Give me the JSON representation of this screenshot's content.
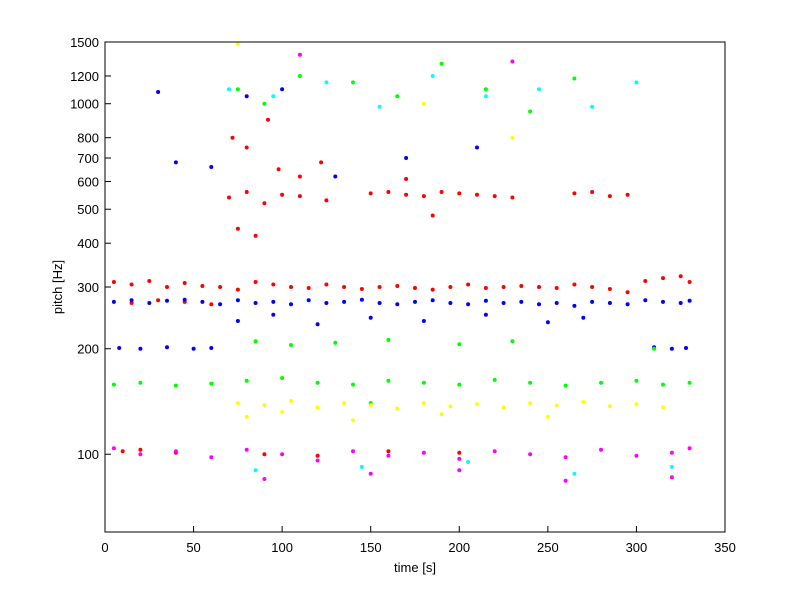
{
  "chart_data": {
    "type": "scatter",
    "title": "",
    "xlabel": "time [s]",
    "ylabel": "pitch [Hz]",
    "xlim": [
      0,
      350
    ],
    "ylim": [
      60,
      1500
    ],
    "yscale": "log",
    "grid": false,
    "legend": "none",
    "x_ticks": [
      0,
      50,
      100,
      150,
      200,
      250,
      300,
      350
    ],
    "x_tick_labels": [
      "0",
      "50",
      "100",
      "150",
      "200",
      "250",
      "300",
      "350"
    ],
    "y_ticks": [
      100,
      200,
      300,
      400,
      500,
      600,
      700,
      800,
      1000,
      1200,
      1500
    ],
    "y_tick_labels": [
      "100",
      "200",
      "300",
      "400",
      "500",
      "600",
      "700",
      "800",
      "1000",
      "1200",
      "1500"
    ],
    "series": [
      {
        "color": "#ff0000",
        "x": [
          5,
          15,
          25,
          35,
          45,
          55,
          65,
          75,
          85,
          95,
          105,
          115,
          125,
          135,
          145,
          155,
          165,
          175,
          185,
          195,
          205,
          215,
          225,
          235,
          245,
          255,
          265,
          275,
          285,
          295,
          305,
          315,
          325,
          330,
          70,
          80,
          90,
          100,
          110,
          125,
          150,
          160,
          170,
          180,
          190,
          200,
          210,
          220,
          230,
          265,
          275,
          285,
          295,
          75,
          85,
          98,
          110,
          122,
          170,
          185,
          72,
          80,
          92,
          15,
          30,
          45,
          60,
          10,
          20,
          40,
          90,
          120,
          160,
          200
        ],
        "y": [
          310,
          305,
          312,
          300,
          308,
          302,
          300,
          295,
          310,
          305,
          300,
          298,
          305,
          300,
          296,
          300,
          302,
          298,
          295,
          300,
          305,
          298,
          300,
          302,
          300,
          298,
          305,
          300,
          296,
          290,
          312,
          318,
          322,
          310,
          540,
          560,
          520,
          550,
          545,
          530,
          555,
          560,
          550,
          545,
          560,
          555,
          550,
          545,
          540,
          555,
          560,
          545,
          550,
          440,
          420,
          650,
          620,
          680,
          610,
          480,
          800,
          750,
          900,
          270,
          275,
          272,
          268,
          102,
          103,
          101,
          100,
          99,
          102,
          101
        ]
      },
      {
        "color": "#0000ff",
        "x": [
          5,
          15,
          25,
          35,
          45,
          55,
          65,
          75,
          85,
          95,
          105,
          115,
          125,
          135,
          145,
          155,
          165,
          175,
          185,
          195,
          205,
          215,
          225,
          235,
          245,
          255,
          265,
          275,
          285,
          295,
          305,
          315,
          325,
          330,
          8,
          20,
          35,
          50,
          60,
          310,
          320,
          328,
          75,
          95,
          120,
          150,
          180,
          215,
          250,
          270,
          40,
          60,
          30,
          80,
          100,
          130,
          170,
          210
        ],
        "y": [
          272,
          275,
          270,
          274,
          276,
          272,
          268,
          275,
          270,
          272,
          268,
          275,
          270,
          272,
          276,
          270,
          268,
          272,
          275,
          270,
          268,
          274,
          270,
          272,
          268,
          270,
          265,
          272,
          270,
          268,
          275,
          272,
          270,
          274,
          201,
          200,
          202,
          200,
          201,
          202,
          200,
          201,
          240,
          250,
          235,
          245,
          240,
          250,
          238,
          245,
          680,
          660,
          1080,
          1050,
          1100,
          620,
          700,
          750
        ]
      },
      {
        "color": "#00ff00",
        "x": [
          5,
          20,
          40,
          60,
          80,
          100,
          120,
          140,
          160,
          180,
          200,
          220,
          240,
          260,
          280,
          300,
          315,
          330,
          85,
          105,
          130,
          160,
          200,
          230,
          75,
          90,
          110,
          140,
          165,
          190,
          215,
          240,
          265,
          150,
          310
        ],
        "y": [
          158,
          160,
          157,
          159,
          162,
          165,
          160,
          158,
          162,
          160,
          158,
          163,
          160,
          157,
          160,
          162,
          158,
          160,
          210,
          205,
          208,
          212,
          206,
          210,
          1100,
          1000,
          1200,
          1150,
          1050,
          1300,
          1100,
          950,
          1180,
          140,
          200
        ]
      },
      {
        "color": "#ffff00",
        "x": [
          75,
          90,
          105,
          120,
          135,
          150,
          165,
          180,
          195,
          210,
          225,
          240,
          255,
          270,
          285,
          300,
          315,
          80,
          100,
          140,
          190,
          250,
          75,
          180,
          230
        ],
        "y": [
          140,
          138,
          142,
          136,
          140,
          138,
          135,
          140,
          137,
          139,
          136,
          140,
          138,
          141,
          137,
          139,
          136,
          128,
          132,
          125,
          130,
          128,
          1480,
          1000,
          800
        ]
      },
      {
        "color": "#ff00ff",
        "x": [
          5,
          20,
          40,
          60,
          80,
          100,
          120,
          140,
          160,
          180,
          200,
          220,
          240,
          260,
          280,
          300,
          320,
          330,
          90,
          150,
          200,
          260,
          320,
          110,
          230
        ],
        "y": [
          104,
          100,
          102,
          98,
          103,
          100,
          96,
          102,
          99,
          101,
          97,
          102,
          100,
          98,
          103,
          99,
          101,
          104,
          85,
          88,
          90,
          84,
          86,
          1380,
          1320
        ]
      },
      {
        "color": "#00ffff",
        "x": [
          70,
          95,
          125,
          155,
          185,
          215,
          245,
          275,
          300,
          85,
          145,
          205,
          265,
          320
        ],
        "y": [
          1100,
          1050,
          1150,
          980,
          1200,
          1050,
          1100,
          980,
          1150,
          90,
          92,
          95,
          88,
          92
        ]
      }
    ]
  }
}
